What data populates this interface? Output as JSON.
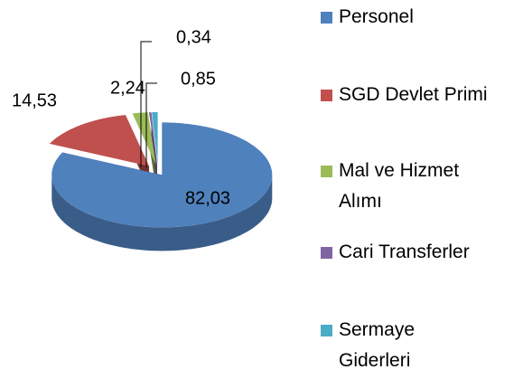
{
  "chart_data": {
    "type": "pie3d",
    "categories": [
      "Personel",
      "SGD Devlet Primi",
      "Mal ve Hizmet Alımı",
      "Cari Transferler",
      "Sermaye Giderleri"
    ],
    "values": [
      82.03,
      14.53,
      2.24,
      0.34,
      0.85
    ],
    "value_labels": [
      "82,03",
      "14,53",
      "2,24",
      "0,34",
      "0,85"
    ],
    "colors": [
      "#4f81bd",
      "#c0504d",
      "#9bbb59",
      "#8064a2",
      "#4bacc6"
    ],
    "legend": "right"
  }
}
